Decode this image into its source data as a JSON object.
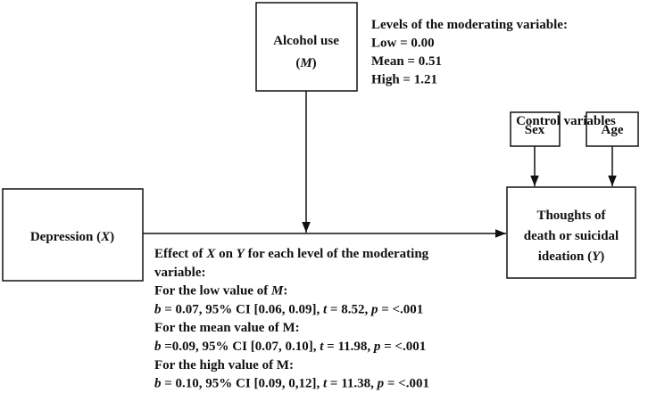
{
  "blocks": [
    {
      "lines": [
        [
          {
            "text": "Alcohol use"
          }
        ],
        [
          {
            "text": "("
          },
          {
            "text": "M",
            "italic": true
          },
          {
            "text": ")"
          }
        ]
      ]
    },
    {
      "lines": [
        [
          {
            "text": "Levels of the moderating variable:"
          }
        ],
        [
          {
            "text": "Low = 0.00"
          }
        ],
        [
          {
            "text": "Mean = 0.51"
          }
        ],
        [
          {
            "text": "High = 1.21"
          }
        ]
      ]
    },
    {
      "lines": [
        [
          {
            "text": "Control variables"
          }
        ]
      ]
    },
    {
      "lines": [
        [
          {
            "text": "Sex"
          }
        ]
      ]
    },
    {
      "lines": [
        [
          {
            "text": "Age"
          }
        ]
      ]
    },
    {
      "lines": [
        [
          {
            "text": "Depression ("
          },
          {
            "text": "X",
            "italic": true
          },
          {
            "text": ")"
          }
        ]
      ]
    },
    {
      "lines": [
        [
          {
            "text": "Thoughts of"
          }
        ],
        [
          {
            "text": "death or suicidal"
          }
        ],
        [
          {
            "text": "ideation ("
          },
          {
            "text": "Y",
            "italic": true
          },
          {
            "text": ")"
          }
        ]
      ]
    },
    {
      "lines": [
        [
          {
            "text": "Effect of "
          },
          {
            "text": "X",
            "italic": true
          },
          {
            "text": " on "
          },
          {
            "text": "Y",
            "italic": true
          },
          {
            "text": " for each level of the moderating"
          }
        ],
        [
          {
            "text": "variable:"
          }
        ],
        [
          {
            "text": "For the low value of "
          },
          {
            "text": "M",
            "italic": true
          },
          {
            "text": ":"
          }
        ],
        [
          {
            "text": "b",
            "italic": true
          },
          {
            "text": " = 0.07, 95% CI [0.06, 0.09], "
          },
          {
            "text": "t",
            "italic": true
          },
          {
            "text": " = 8.52, "
          },
          {
            "text": "p",
            "italic": true
          },
          {
            "text": " = <.001"
          }
        ],
        [
          {
            "text": "For the mean value of M:"
          }
        ],
        [
          {
            "text": "b",
            "italic": true
          },
          {
            "text": " =0.09, 95% CI [0.07, 0.10], "
          },
          {
            "text": "t",
            "italic": true
          },
          {
            "text": " = 11.98, "
          },
          {
            "text": "p",
            "italic": true
          },
          {
            "text": " = <.001"
          }
        ],
        [
          {
            "text": "For the high value of M:"
          }
        ],
        [
          {
            "text": "b",
            "italic": true
          },
          {
            "text": " = 0.10, 95% CI [0.09, 0,12], "
          },
          {
            "text": "t",
            "italic": true
          },
          {
            "text": " = 11.38, "
          },
          {
            "text": "p",
            "italic": true
          },
          {
            "text": " = <.001"
          }
        ]
      ]
    }
  ]
}
